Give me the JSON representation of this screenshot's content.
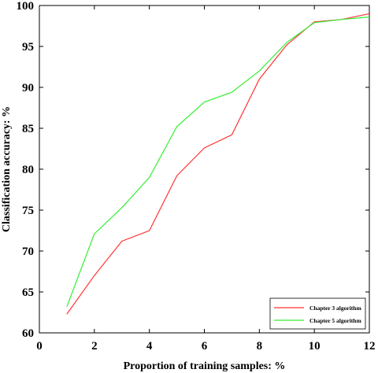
{
  "chart_data": {
    "type": "line",
    "xlabel": "Proportion of training samples:  %",
    "ylabel": "Classification accuracy:  %",
    "xlim": [
      0,
      12
    ],
    "ylim": [
      60,
      100
    ],
    "xticks": [
      0,
      2,
      4,
      6,
      8,
      10,
      12
    ],
    "yticks": [
      60,
      65,
      70,
      75,
      80,
      85,
      90,
      95,
      100
    ],
    "grid": false,
    "legend_position": "bottom-right",
    "series": [
      {
        "name": "Chapter 3 algorithm",
        "color": "#ff3333",
        "x": [
          1,
          2,
          3,
          4,
          5,
          6,
          7,
          8,
          9,
          10,
          11,
          12
        ],
        "values": [
          62.3,
          67.0,
          71.2,
          72.5,
          79.2,
          82.6,
          84.2,
          91.0,
          95.2,
          98.0,
          98.3,
          99.0
        ]
      },
      {
        "name": "Chapter 5 algorithm",
        "color": "#33ee33",
        "x": [
          1,
          2,
          3,
          4,
          5,
          6,
          7,
          8,
          9,
          10,
          11,
          12
        ],
        "values": [
          63.2,
          72.1,
          75.3,
          79.0,
          85.2,
          88.2,
          89.4,
          92.0,
          95.5,
          97.9,
          98.3,
          98.6
        ]
      }
    ]
  }
}
